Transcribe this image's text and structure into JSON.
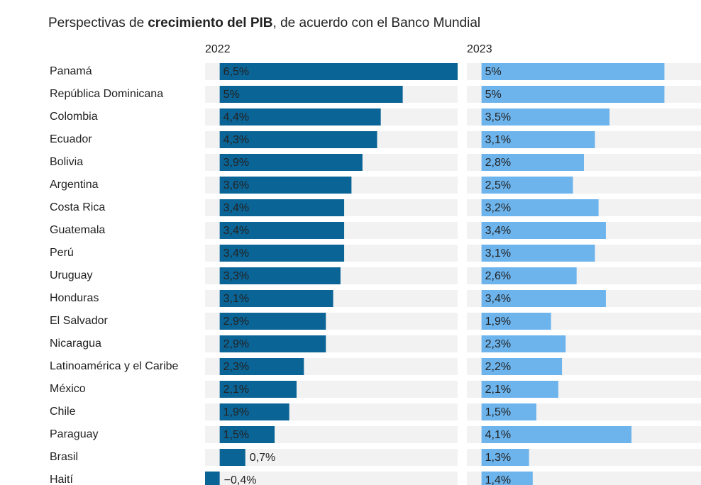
{
  "chart_data": {
    "type": "bar",
    "title_parts": [
      "Perspectivas de",
      "crecimiento del PIB",
      ", de acuerdo con el Banco Mundial"
    ],
    "categories": [
      "Panamá",
      "República Dominicana",
      "Colombia",
      "Ecuador",
      "Bolivia",
      "Argentina",
      "Costa Rica",
      "Guatemala",
      "Perú",
      "Uruguay",
      "Honduras",
      "El Salvador",
      "Nicaragua",
      "Latinoamérica y el Caribe",
      "México",
      "Chile",
      "Paraguay",
      "Brasil",
      "Haití"
    ],
    "series": [
      {
        "name": "2022",
        "color": "#0b6496",
        "label_color": "#ffffff",
        "xlim": [
          -0.4,
          6.5
        ],
        "values": [
          6.5,
          5,
          4.4,
          4.3,
          3.9,
          3.6,
          3.4,
          3.4,
          3.4,
          3.3,
          3.1,
          2.9,
          2.9,
          2.3,
          2.1,
          1.9,
          1.5,
          0.7,
          -0.4
        ],
        "value_labels": [
          "6,5%",
          "5%",
          "4,4%",
          "4,3%",
          "3,9%",
          "3,6%",
          "3,4%",
          "3,4%",
          "3,4%",
          "3,3%",
          "3,1%",
          "2,9%",
          "2,9%",
          "2,3%",
          "2,1%",
          "1,9%",
          "1,5%",
          "0,7%",
          "−0,4%"
        ]
      },
      {
        "name": "2023",
        "color": "#6db4ed",
        "label_color": "#1c3550",
        "xlim": [
          -0.4,
          6.0
        ],
        "values": [
          5,
          5,
          3.5,
          3.1,
          2.8,
          2.5,
          3.2,
          3.4,
          3.1,
          2.6,
          3.4,
          1.9,
          2.3,
          2.2,
          2.1,
          1.5,
          4.1,
          1.3,
          1.4
        ],
        "value_labels": [
          "5%",
          "5%",
          "3,5%",
          "3,1%",
          "2,8%",
          "2,5%",
          "3,2%",
          "3,4%",
          "3,1%",
          "2,6%",
          "3,4%",
          "1,9%",
          "2,3%",
          "2,2%",
          "2,1%",
          "1,5%",
          "4,1%",
          "1,3%",
          "1,4%"
        ]
      }
    ]
  }
}
